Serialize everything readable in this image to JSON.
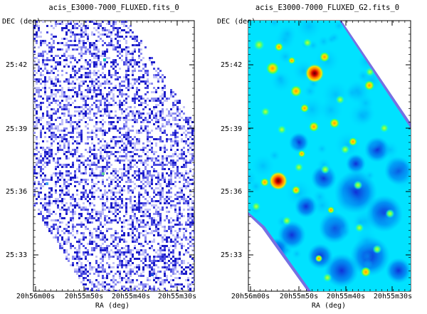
{
  "panels": [
    {
      "id": "raw",
      "title": "acis_E3000-7000_FLUXED.fits_0",
      "ylabel": "DEC (deg)",
      "xlabel": "RA (deg)",
      "style": "raw-pixel-map",
      "x_ticks": [
        "20h56m00s",
        "20h55m50s",
        "20h55m40s",
        "20h55m30s"
      ],
      "y_ticks": [
        "25:42",
        "25:39",
        "25:36",
        "25:33"
      ]
    },
    {
      "id": "smoothed",
      "title": "acis_E3000-7000_FLUXED_G2.fits_0",
      "ylabel": "DEC (deg)",
      "xlabel": "RA (deg)",
      "style": "smoothed-map",
      "x_ticks": [
        "20h56m00s",
        "20h55m50s",
        "20h55m40s",
        "20h55m30s"
      ],
      "y_ticks": [
        "25:42",
        "25:39",
        "25:36",
        "25:33"
      ]
    }
  ],
  "colors": {
    "raw_pixels": [
      "#1c1cc8",
      "#4a4ae0",
      "#8c8cf0",
      "#c4c4f8"
    ],
    "smoothed_background": "#00e6ff",
    "smoothed_mid": "#00a8f8",
    "smoothed_low": "#0044e0",
    "smoothed_edge": "#3030c8",
    "source_bright": "#d00000",
    "source_mid": "#ffe000",
    "source_glow": "#30ff70"
  }
}
